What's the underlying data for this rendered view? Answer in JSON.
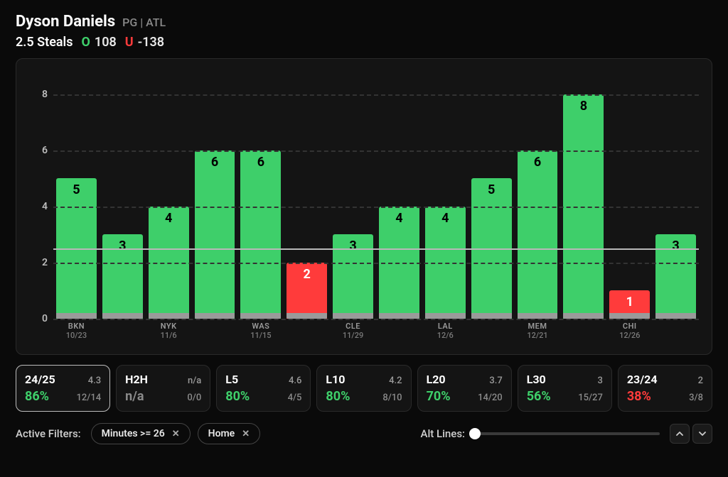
{
  "colors": {
    "bg": "#0a0a0a",
    "panel": "#141414",
    "border": "#2a2a2a",
    "grid": "#333333",
    "threshold": "#b8b8b8",
    "bar_green": "#3ecf6a",
    "bar_red": "#ff3b3b",
    "bar_foot": "#9a9a9a",
    "text_muted": "#8a8a8a",
    "pct_green": "#3ecf6a",
    "pct_red": "#ff3b3b",
    "pct_gray": "#8a8a8a"
  },
  "header": {
    "player_name": "Dyson Daniels",
    "position": "PG",
    "team": "ATL",
    "prop": "2.5 Steals",
    "over_odds": "108",
    "under_odds": "-138"
  },
  "chart": {
    "type": "bar",
    "y_ticks": [
      0,
      2,
      4,
      6,
      8
    ],
    "y_max": 8.8,
    "threshold": 2.5,
    "bars": [
      {
        "value": 5,
        "opp": "BKN",
        "date": "10/23",
        "over": true
      },
      {
        "value": 3,
        "opp": "",
        "date": "",
        "over": true
      },
      {
        "value": 4,
        "opp": "NYK",
        "date": "11/6",
        "over": true
      },
      {
        "value": 6,
        "opp": "",
        "date": "",
        "over": true
      },
      {
        "value": 6,
        "opp": "WAS",
        "date": "11/15",
        "over": true
      },
      {
        "value": 2,
        "opp": "",
        "date": "",
        "over": false
      },
      {
        "value": 3,
        "opp": "CLE",
        "date": "11/29",
        "over": true
      },
      {
        "value": 4,
        "opp": "",
        "date": "",
        "over": true
      },
      {
        "value": 4,
        "opp": "LAL",
        "date": "12/6",
        "over": true
      },
      {
        "value": 5,
        "opp": "",
        "date": "",
        "over": true
      },
      {
        "value": 6,
        "opp": "MEM",
        "date": "12/21",
        "over": true
      },
      {
        "value": 8,
        "opp": "",
        "date": "",
        "over": true
      },
      {
        "value": 1,
        "opp": "CHI",
        "date": "12/26",
        "over": false
      },
      {
        "value": 3,
        "opp": "",
        "date": "",
        "over": true
      }
    ]
  },
  "stats": [
    {
      "title": "24/25",
      "avg": "4.3",
      "pct": "86%",
      "frac": "12/14",
      "pct_color": "#3ecf6a",
      "active": true
    },
    {
      "title": "H2H",
      "avg": "n/a",
      "pct": "n/a",
      "frac": "0/0",
      "pct_color": "#8a8a8a",
      "active": false
    },
    {
      "title": "L5",
      "avg": "4.6",
      "pct": "80%",
      "frac": "4/5",
      "pct_color": "#3ecf6a",
      "active": false
    },
    {
      "title": "L10",
      "avg": "4.2",
      "pct": "80%",
      "frac": "8/10",
      "pct_color": "#3ecf6a",
      "active": false
    },
    {
      "title": "L20",
      "avg": "3.7",
      "pct": "70%",
      "frac": "14/20",
      "pct_color": "#3ecf6a",
      "active": false
    },
    {
      "title": "L30",
      "avg": "3",
      "pct": "56%",
      "frac": "15/27",
      "pct_color": "#3ecf6a",
      "active": false
    },
    {
      "title": "23/24",
      "avg": "2",
      "pct": "38%",
      "frac": "3/8",
      "pct_color": "#ff3b3b",
      "active": false
    }
  ],
  "footer": {
    "active_filters_label": "Active Filters:",
    "chips": [
      "Minutes  >=  26",
      "Home"
    ],
    "alt_lines_label": "Alt Lines:"
  }
}
